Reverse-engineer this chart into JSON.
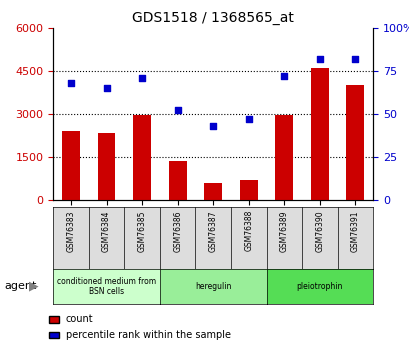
{
  "title": "GDS1518 / 1368565_at",
  "categories": [
    "GSM76383",
    "GSM76384",
    "GSM76385",
    "GSM76386",
    "GSM76387",
    "GSM76388",
    "GSM76389",
    "GSM76390",
    "GSM76391"
  ],
  "counts": [
    2400,
    2350,
    2950,
    1350,
    600,
    700,
    2950,
    4600,
    4000
  ],
  "percentile": [
    68,
    65,
    71,
    52,
    43,
    47,
    72,
    82,
    82
  ],
  "ylim_left": [
    0,
    6000
  ],
  "ylim_right": [
    0,
    100
  ],
  "yticks_left": [
    0,
    1500,
    3000,
    4500,
    6000
  ],
  "yticks_right": [
    0,
    25,
    50,
    75,
    100
  ],
  "bar_color": "#cc0000",
  "dot_color": "#0000cc",
  "groups": [
    {
      "label": "conditioned medium from\nBSN cells",
      "start": 0,
      "end": 3,
      "color": "#ccffcc"
    },
    {
      "label": "heregulin",
      "start": 3,
      "end": 6,
      "color": "#99ee99"
    },
    {
      "label": "pleiotrophin",
      "start": 6,
      "end": 9,
      "color": "#55dd55"
    }
  ],
  "agent_label": "agent",
  "legend_items": [
    {
      "color": "#cc0000",
      "label": "count"
    },
    {
      "color": "#0000cc",
      "label": "percentile rank within the sample"
    }
  ],
  "dotted_line_color": "#000000",
  "grid_yticks": [
    1500,
    3000,
    4500
  ]
}
